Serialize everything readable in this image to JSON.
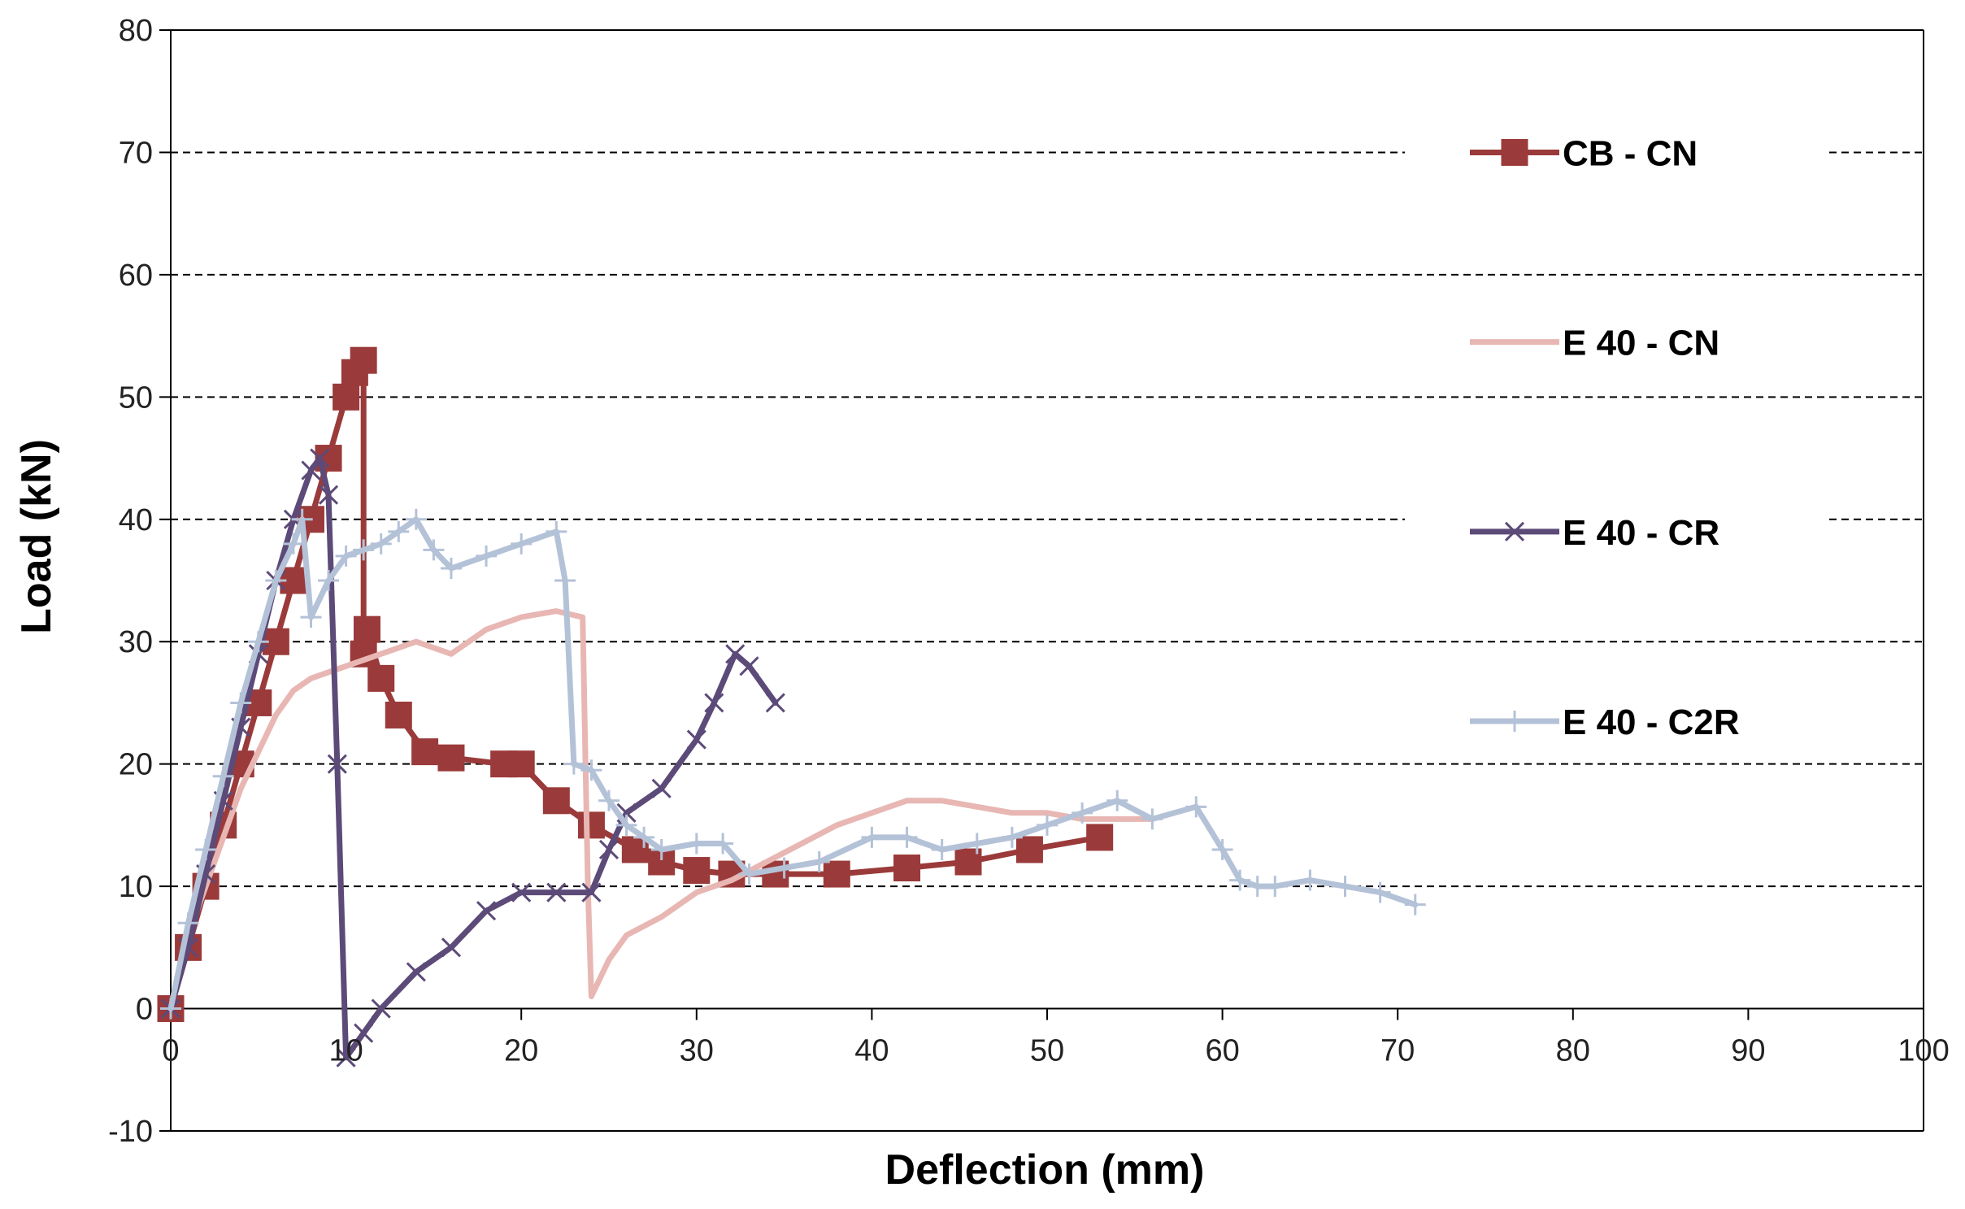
{
  "chart_data": {
    "type": "line",
    "title": "",
    "xlabel": "Deflection (mm)",
    "ylabel": "Load (kN)",
    "xlim": [
      0,
      100
    ],
    "ylim": [
      -10,
      80
    ],
    "xticks": [
      0,
      10,
      20,
      30,
      40,
      50,
      60,
      70,
      80,
      90,
      100
    ],
    "yticks": [
      -10,
      0,
      10,
      20,
      30,
      40,
      50,
      60,
      70,
      80
    ],
    "grid": "horizontal dashed",
    "legend_position": "right",
    "series": [
      {
        "name": "CB - CN",
        "color": "#9B3A3A",
        "marker": "square",
        "x": [
          0,
          1,
          2,
          3,
          4,
          5,
          6,
          7,
          8,
          9,
          10,
          10.5,
          11,
          11,
          11.2,
          12,
          13,
          14.5,
          16,
          19,
          20,
          22,
          24,
          26.5,
          28,
          30,
          32,
          34.5,
          38,
          42,
          45.5,
          49,
          53
        ],
        "y": [
          0,
          5,
          10,
          15,
          20,
          25,
          30,
          35,
          40,
          45,
          50,
          52,
          53,
          29,
          31,
          27,
          24,
          21,
          20.5,
          20,
          20,
          17,
          15,
          13,
          12,
          11.3,
          11,
          11,
          11,
          11.5,
          12,
          13,
          14
        ]
      },
      {
        "name": "E 40 - CN",
        "color": "#E8B7B3",
        "marker": "none",
        "x": [
          0,
          1,
          2,
          3,
          4,
          5,
          6,
          7,
          8,
          9,
          10,
          12,
          14,
          16,
          18,
          20,
          22,
          23.5,
          23.8,
          24,
          25,
          26,
          28,
          30,
          32,
          34,
          36,
          38,
          40,
          42,
          44,
          46,
          48,
          50,
          52,
          54,
          56
        ],
        "y": [
          0,
          6,
          10,
          14,
          18,
          21,
          24,
          26,
          27,
          27.5,
          28,
          29,
          30,
          29,
          31,
          32,
          32.5,
          32,
          10,
          1,
          4,
          6,
          7.5,
          9.5,
          10.5,
          12,
          13.5,
          15,
          16,
          17,
          17,
          16.5,
          16,
          16,
          15.5,
          15.5,
          15.5
        ]
      },
      {
        "name": "E 40 - CR",
        "color": "#5C4A78",
        "marker": "x",
        "x": [
          0,
          1,
          2,
          3,
          4,
          5,
          6,
          7,
          8,
          8.5,
          9,
          9.5,
          10,
          11,
          12,
          14,
          16,
          18,
          20,
          22,
          24,
          25,
          26,
          28,
          30,
          31,
          32.2,
          33,
          34.5
        ],
        "y": [
          0,
          5,
          11,
          17,
          23,
          29,
          35,
          40,
          44,
          45,
          42,
          20,
          -4,
          -2,
          0,
          3,
          5,
          8,
          9.5,
          9.5,
          9.5,
          13,
          16,
          18,
          22,
          25,
          29,
          28,
          25
        ]
      },
      {
        "name": "E 40 - C2R",
        "color": "#B4C2D8",
        "marker": "plus",
        "x": [
          0,
          1,
          2,
          3,
          4,
          5,
          6,
          7,
          7.5,
          8,
          9,
          10,
          11,
          12,
          13,
          14,
          15,
          16,
          18,
          20,
          22,
          22.5,
          23,
          24,
          25,
          26,
          27,
          28,
          30,
          31.5,
          33,
          35,
          37,
          40,
          42,
          44,
          46,
          48,
          50,
          52,
          54,
          56,
          58.5,
          60,
          61,
          62,
          63,
          65,
          67,
          69,
          71
        ],
        "y": [
          0,
          7,
          13,
          19,
          25,
          30,
          35,
          38,
          40,
          32,
          35,
          37,
          37.5,
          38,
          39,
          40,
          37.5,
          36,
          37,
          38,
          39,
          35,
          20,
          19.5,
          17,
          15,
          14,
          13,
          13.5,
          13.5,
          11,
          11.5,
          12,
          14,
          14,
          13,
          13.5,
          14,
          15,
          16,
          17,
          15.5,
          16.5,
          13,
          10.5,
          10,
          10,
          10.5,
          10,
          9.5,
          8.5
        ]
      }
    ]
  }
}
